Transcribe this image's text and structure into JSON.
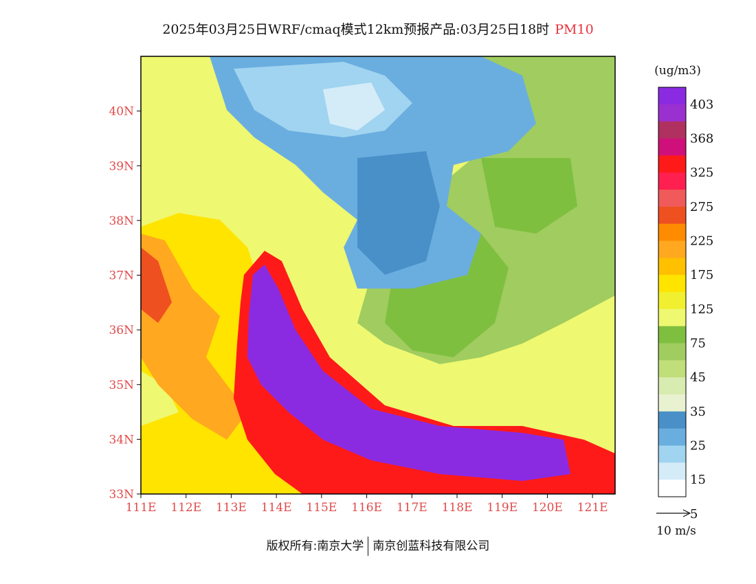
{
  "header": {
    "title": "2025年03月25日WRF/cmaq模式12km预报产品:03月25日18时",
    "product": "PM10"
  },
  "map": {
    "lat_labels": [
      "40N",
      "39N",
      "38N",
      "37N",
      "36N",
      "35N",
      "34N",
      "33N"
    ],
    "lon_labels": [
      "111E",
      "112E",
      "113E",
      "114E",
      "115E",
      "116E",
      "117E",
      "118E",
      "119E",
      "120E",
      "121E"
    ],
    "axis_label_color": "#e04a4a",
    "lat_range": [
      33,
      41
    ],
    "lon_range": [
      111,
      121.5
    ]
  },
  "legend": {
    "unit": "(ug/m3)",
    "labels": [
      "403",
      "368",
      "325",
      "275",
      "225",
      "175",
      "125",
      "75",
      "45",
      "35",
      "25",
      "15",
      "5"
    ],
    "colors": [
      "#8a2be2",
      "#9b30d0",
      "#b03060",
      "#d0107a",
      "#ff1a1a",
      "#ff2050",
      "#f05a5a",
      "#ee5020",
      "#ff8c00",
      "#ffa820",
      "#ffc000",
      "#ffe400",
      "#f0f030",
      "#eef870",
      "#7fbf3f",
      "#a0cc60",
      "#c0de7a",
      "#d8ebb0",
      "#e8f2d0",
      "#4a90c8",
      "#6aaee0",
      "#a0d4f0",
      "#d4ecf8",
      "#ffffff"
    ]
  },
  "wind_scale": {
    "label": "10 m/s"
  },
  "footer": {
    "copyright_left": "版权所有:南京大学",
    "copyright_right": "南京创蓝科技有限公司"
  }
}
